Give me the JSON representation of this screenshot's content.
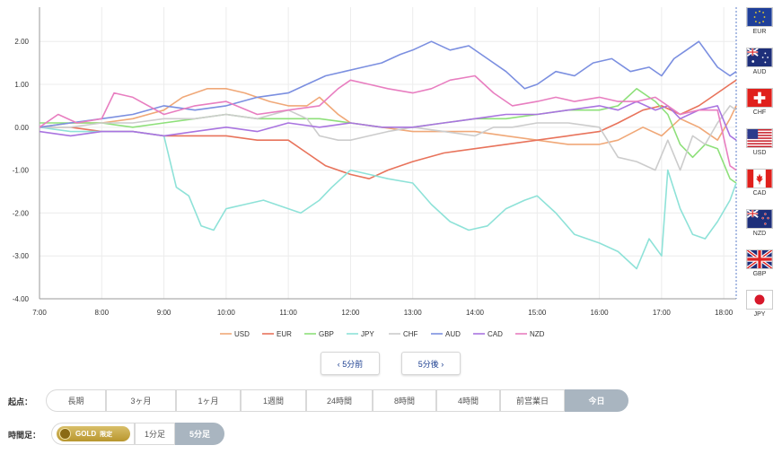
{
  "chart_data": {
    "type": "line",
    "xlim": [
      7.0,
      18.2
    ],
    "ylim": [
      -4.0,
      2.8
    ],
    "x_ticks": [
      {
        "v": 7,
        "label": "7:00"
      },
      {
        "v": 8,
        "label": "8:00"
      },
      {
        "v": 9,
        "label": "9:00"
      },
      {
        "v": 10,
        "label": "10:00"
      },
      {
        "v": 11,
        "label": "11:00"
      },
      {
        "v": 12,
        "label": "12:00"
      },
      {
        "v": 13,
        "label": "13:00"
      },
      {
        "v": 14,
        "label": "14:00"
      },
      {
        "v": 15,
        "label": "15:00"
      },
      {
        "v": 16,
        "label": "16:00"
      },
      {
        "v": 17,
        "label": "17:00"
      },
      {
        "v": 18,
        "label": "18:00"
      }
    ],
    "y_ticks": [
      {
        "v": 2,
        "label": "2.00"
      },
      {
        "v": 1,
        "label": "1.00"
      },
      {
        "v": 0,
        "label": "0.00"
      },
      {
        "v": -1,
        "label": "-1.00"
      },
      {
        "v": -2,
        "label": "-2.00"
      },
      {
        "v": -3,
        "label": "-3.00"
      },
      {
        "v": -4,
        "label": "-4.00"
      }
    ],
    "grid": true,
    "legend_position": "bottom",
    "series": [
      {
        "name": "USD",
        "color": "#f0a878",
        "x": [
          7.0,
          7.5,
          8.0,
          8.5,
          9.0,
          9.3,
          9.7,
          10.0,
          10.3,
          10.7,
          11.0,
          11.3,
          11.5,
          11.8,
          12.0,
          12.5,
          13.0,
          13.5,
          14.0,
          14.5,
          15.0,
          15.5,
          16.0,
          16.3,
          16.7,
          17.0,
          17.3,
          17.6,
          17.9,
          18.1,
          18.2
        ],
        "y": [
          0.0,
          0.1,
          0.1,
          0.2,
          0.4,
          0.7,
          0.9,
          0.9,
          0.8,
          0.6,
          0.5,
          0.5,
          0.7,
          0.3,
          0.1,
          0.0,
          -0.1,
          -0.1,
          -0.1,
          -0.2,
          -0.3,
          -0.4,
          -0.4,
          -0.3,
          0.0,
          -0.2,
          0.2,
          0.0,
          -0.3,
          0.2,
          0.5
        ]
      },
      {
        "name": "EUR",
        "color": "#e8735b",
        "x": [
          7.0,
          7.5,
          8.0,
          8.5,
          9.0,
          9.5,
          10.0,
          10.5,
          11.0,
          11.3,
          11.6,
          12.0,
          12.3,
          12.6,
          13.0,
          13.5,
          14.0,
          14.5,
          15.0,
          15.5,
          16.0,
          16.3,
          16.7,
          17.0,
          17.3,
          17.6,
          17.9,
          18.1,
          18.2
        ],
        "y": [
          0.0,
          0.0,
          -0.1,
          -0.1,
          -0.2,
          -0.2,
          -0.2,
          -0.3,
          -0.3,
          -0.6,
          -0.9,
          -1.1,
          -1.2,
          -1.0,
          -0.8,
          -0.6,
          -0.5,
          -0.4,
          -0.3,
          -0.2,
          -0.1,
          0.1,
          0.4,
          0.5,
          0.3,
          0.5,
          0.8,
          1.0,
          1.1
        ]
      },
      {
        "name": "GBP",
        "color": "#8ee07a",
        "x": [
          7.0,
          7.5,
          8.0,
          8.5,
          9.0,
          9.5,
          10.0,
          10.5,
          11.0,
          11.5,
          12.0,
          12.5,
          13.0,
          13.5,
          14.0,
          14.5,
          15.0,
          15.5,
          16.0,
          16.3,
          16.6,
          16.9,
          17.1,
          17.3,
          17.5,
          17.7,
          17.9,
          18.1,
          18.2
        ],
        "y": [
          0.1,
          0.1,
          0.1,
          0.0,
          0.1,
          0.2,
          0.3,
          0.2,
          0.2,
          0.2,
          0.1,
          0.0,
          0.0,
          0.1,
          0.2,
          0.2,
          0.3,
          0.4,
          0.4,
          0.5,
          0.9,
          0.6,
          0.3,
          -0.4,
          -0.7,
          -0.4,
          -0.5,
          -1.2,
          -1.3
        ]
      },
      {
        "name": "JPY",
        "color": "#8ee2d8",
        "x": [
          7.0,
          7.5,
          8.0,
          8.5,
          9.0,
          9.2,
          9.4,
          9.6,
          9.8,
          10.0,
          10.3,
          10.6,
          11.0,
          11.2,
          11.5,
          11.7,
          12.0,
          12.3,
          12.6,
          13.0,
          13.3,
          13.6,
          13.9,
          14.2,
          14.5,
          14.8,
          15.0,
          15.3,
          15.6,
          16.0,
          16.3,
          16.6,
          16.8,
          17.0,
          17.1,
          17.3,
          17.5,
          17.7,
          17.9,
          18.1,
          18.2
        ],
        "y": [
          0.0,
          -0.1,
          -0.1,
          -0.1,
          -0.2,
          -1.4,
          -1.6,
          -2.3,
          -2.4,
          -1.9,
          -1.8,
          -1.7,
          -1.9,
          -2.0,
          -1.7,
          -1.4,
          -1.0,
          -1.1,
          -1.2,
          -1.3,
          -1.8,
          -2.2,
          -2.4,
          -2.3,
          -1.9,
          -1.7,
          -1.6,
          -2.0,
          -2.5,
          -2.7,
          -2.9,
          -3.3,
          -2.6,
          -3.0,
          -1.0,
          -1.9,
          -2.5,
          -2.6,
          -2.2,
          -1.7,
          -1.3
        ]
      },
      {
        "name": "CHF",
        "color": "#cccccc",
        "x": [
          7.0,
          7.5,
          8.0,
          8.5,
          9.0,
          9.5,
          10.0,
          10.5,
          11.0,
          11.3,
          11.5,
          11.8,
          12.0,
          12.3,
          12.6,
          13.0,
          13.5,
          14.0,
          14.3,
          14.6,
          15.0,
          15.5,
          16.0,
          16.3,
          16.6,
          16.9,
          17.1,
          17.3,
          17.5,
          17.7,
          17.9,
          18.1,
          18.2
        ],
        "y": [
          0.0,
          0.0,
          0.1,
          0.1,
          0.2,
          0.2,
          0.3,
          0.2,
          0.4,
          0.2,
          -0.2,
          -0.3,
          -0.3,
          -0.2,
          -0.1,
          0.0,
          -0.1,
          -0.2,
          0.0,
          0.0,
          0.1,
          0.1,
          0.0,
          -0.7,
          -0.8,
          -1.0,
          -0.3,
          -1.0,
          -0.2,
          -0.4,
          0.1,
          0.5,
          0.4
        ]
      },
      {
        "name": "AUD",
        "color": "#7b8fe0",
        "x": [
          7.0,
          7.5,
          8.0,
          8.5,
          9.0,
          9.5,
          10.0,
          10.5,
          11.0,
          11.3,
          11.6,
          11.9,
          12.2,
          12.5,
          12.8,
          13.0,
          13.3,
          13.6,
          13.9,
          14.2,
          14.5,
          14.8,
          15.0,
          15.3,
          15.6,
          15.9,
          16.2,
          16.5,
          16.8,
          17.0,
          17.2,
          17.4,
          17.6,
          17.9,
          18.1,
          18.2
        ],
        "y": [
          0.0,
          0.1,
          0.2,
          0.3,
          0.5,
          0.4,
          0.5,
          0.7,
          0.8,
          1.0,
          1.2,
          1.3,
          1.4,
          1.5,
          1.7,
          1.8,
          2.0,
          1.8,
          1.9,
          1.6,
          1.3,
          0.9,
          1.0,
          1.3,
          1.2,
          1.5,
          1.6,
          1.3,
          1.4,
          1.2,
          1.6,
          1.8,
          2.0,
          1.4,
          1.2,
          1.3
        ]
      },
      {
        "name": "CAD",
        "color": "#a974e0",
        "x": [
          7.0,
          7.5,
          8.0,
          8.5,
          9.0,
          9.5,
          10.0,
          10.5,
          11.0,
          11.5,
          12.0,
          12.5,
          13.0,
          13.5,
          14.0,
          14.5,
          15.0,
          15.5,
          16.0,
          16.3,
          16.6,
          16.9,
          17.1,
          17.3,
          17.6,
          17.9,
          18.1,
          18.2
        ],
        "y": [
          -0.1,
          -0.2,
          -0.1,
          -0.1,
          -0.2,
          -0.1,
          0.0,
          -0.1,
          0.1,
          0.0,
          0.1,
          0.0,
          0.0,
          0.1,
          0.2,
          0.3,
          0.3,
          0.4,
          0.5,
          0.4,
          0.6,
          0.4,
          0.5,
          0.2,
          0.4,
          0.5,
          -0.2,
          -0.3
        ]
      },
      {
        "name": "NZD",
        "color": "#e87ec0",
        "x": [
          7.0,
          7.3,
          7.6,
          8.0,
          8.2,
          8.5,
          9.0,
          9.5,
          10.0,
          10.5,
          11.0,
          11.5,
          11.8,
          12.0,
          12.3,
          12.6,
          13.0,
          13.3,
          13.6,
          14.0,
          14.3,
          14.6,
          15.0,
          15.3,
          15.6,
          16.0,
          16.3,
          16.6,
          16.9,
          17.1,
          17.3,
          17.6,
          17.9,
          18.1,
          18.2
        ],
        "y": [
          0.0,
          0.3,
          0.1,
          0.2,
          0.8,
          0.7,
          0.3,
          0.5,
          0.6,
          0.3,
          0.4,
          0.5,
          0.9,
          1.1,
          1.0,
          0.9,
          0.8,
          0.9,
          1.1,
          1.2,
          0.8,
          0.5,
          0.6,
          0.7,
          0.6,
          0.7,
          0.6,
          0.6,
          0.7,
          0.5,
          0.3,
          0.4,
          0.4,
          -0.9,
          -1.0
        ]
      }
    ]
  },
  "flags": [
    {
      "code": "EUR",
      "icon": "eu-flag-icon"
    },
    {
      "code": "AUD",
      "icon": "australia-flag-icon"
    },
    {
      "code": "CHF",
      "icon": "switzerland-flag-icon"
    },
    {
      "code": "USD",
      "icon": "usa-flag-icon"
    },
    {
      "code": "CAD",
      "icon": "canada-flag-icon"
    },
    {
      "code": "NZD",
      "icon": "new-zealand-flag-icon"
    },
    {
      "code": "GBP",
      "icon": "uk-flag-icon"
    },
    {
      "code": "JPY",
      "icon": "japan-flag-icon"
    }
  ],
  "nav": {
    "prev": "‹ 5分前",
    "next": "5分後 ›"
  },
  "start_label": "起点：",
  "start_options": [
    "長期",
    "3ヶ月",
    "1ヶ月",
    "1週間",
    "24時間",
    "8時間",
    "4時間",
    "前営業日",
    "今日"
  ],
  "start_selected": "今日",
  "timeframe_label": "時間足：",
  "gold_badge": {
    "text": "GOLD",
    "sub": "限定"
  },
  "timeframe_options": [
    "1分足",
    "5分足"
  ],
  "timeframe_selected": "5分足"
}
